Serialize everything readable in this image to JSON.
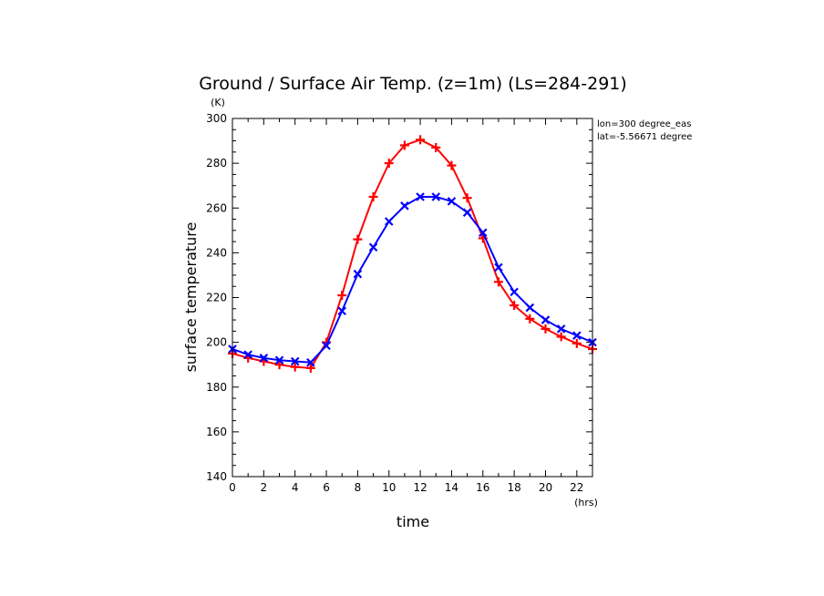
{
  "chart_data": {
    "type": "line",
    "title": "Ground / Surface Air Temp. (z=1m) (Ls=284-291)",
    "xlabel": "time",
    "ylabel": "surface temperature",
    "x_unit": "(hrs)",
    "y_unit": "(K)",
    "xlim": [
      0,
      23
    ],
    "ylim": [
      140,
      300
    ],
    "xticks": [
      0,
      2,
      4,
      6,
      8,
      10,
      12,
      14,
      16,
      18,
      20,
      22
    ],
    "yticks": [
      140,
      160,
      180,
      200,
      220,
      240,
      260,
      280,
      300
    ],
    "annotations": [
      "lon=300 degree_eas",
      "lat=-5.56671 degree"
    ],
    "x": [
      0,
      1,
      2,
      3,
      4,
      5,
      6,
      7,
      8,
      9,
      10,
      11,
      12,
      13,
      14,
      15,
      16,
      17,
      18,
      19,
      20,
      21,
      22,
      23
    ],
    "series": [
      {
        "color": "#ff0000",
        "marker": "plus",
        "values": [
          195,
          193,
          191.5,
          190,
          189,
          188.5,
          200,
          221,
          246,
          265,
          280,
          288,
          290.5,
          287,
          279,
          264.5,
          246.5,
          227,
          216.5,
          210.5,
          206,
          202.5,
          199.5,
          197
        ]
      },
      {
        "color": "#0000ff",
        "marker": "x",
        "values": [
          197,
          194.5,
          193,
          192,
          191.5,
          191,
          198.5,
          214,
          230.5,
          242.5,
          254,
          261,
          265,
          265,
          263,
          258,
          249,
          233.5,
          222.5,
          215.5,
          210,
          206,
          203,
          200
        ]
      }
    ]
  }
}
